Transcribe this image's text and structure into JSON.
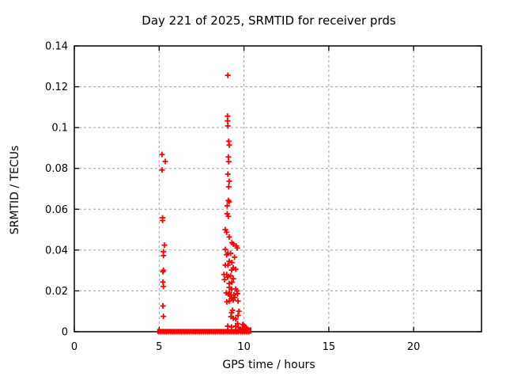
{
  "colors": {
    "background": "#ffffff",
    "axis": "#000000",
    "grid": "#a0a0a0",
    "marker": "#ff0000",
    "text": "#000000"
  },
  "chart_data": {
    "type": "scatter",
    "title": "Day 221 of 2025, SRMTID for receiver prds",
    "xlabel": "GPS time / hours",
    "ylabel": "SRMTID / TECUs",
    "xlim": [
      0,
      24
    ],
    "ylim": [
      0,
      0.14
    ],
    "grid": true,
    "legend": "none",
    "marker": {
      "shape": "plus",
      "color": "#ff0000",
      "size": 7
    },
    "xticks": [
      {
        "v": 0,
        "label": "0"
      },
      {
        "v": 5,
        "label": "5"
      },
      {
        "v": 10,
        "label": "10"
      },
      {
        "v": 15,
        "label": "15"
      },
      {
        "v": 20,
        "label": "20"
      }
    ],
    "yticks": [
      {
        "v": 0,
        "label": "0"
      },
      {
        "v": 0.02,
        "label": "0.02"
      },
      {
        "v": 0.04,
        "label": "0.04"
      },
      {
        "v": 0.06,
        "label": "0.06"
      },
      {
        "v": 0.08,
        "label": "0.08"
      },
      {
        "v": 0.1,
        "label": "0.1"
      },
      {
        "v": 0.12,
        "label": "0.12"
      },
      {
        "v": 0.14,
        "label": "0.14"
      }
    ],
    "baseline_segments": [
      {
        "x_start": 4.97,
        "x_end": 9.74,
        "y": 0,
        "thickness_px": 6
      },
      {
        "x_start": 9.8,
        "x_end": 10.35,
        "y": 0,
        "thickness_px": 8
      }
    ],
    "series": [
      {
        "name": "SRMTID",
        "points": [
          [
            5.17,
            0.0868
          ],
          [
            5.36,
            0.0834
          ],
          [
            5.17,
            0.0792
          ],
          [
            5.2,
            0.0558
          ],
          [
            5.2,
            0.0545
          ],
          [
            5.31,
            0.0424
          ],
          [
            5.25,
            0.0392
          ],
          [
            5.25,
            0.0373
          ],
          [
            5.25,
            0.0301
          ],
          [
            5.22,
            0.0294
          ],
          [
            5.22,
            0.0243
          ],
          [
            5.25,
            0.0222
          ],
          [
            5.22,
            0.0126
          ],
          [
            5.25,
            0.0075
          ],
          [
            9.05,
            0.1256
          ],
          [
            9.03,
            0.1056
          ],
          [
            9.03,
            0.1033
          ],
          [
            9.05,
            0.1008
          ],
          [
            9.1,
            0.0933
          ],
          [
            9.13,
            0.0914
          ],
          [
            9.08,
            0.0856
          ],
          [
            9.1,
            0.0833
          ],
          [
            9.05,
            0.0772
          ],
          [
            9.13,
            0.0737
          ],
          [
            9.1,
            0.071
          ],
          [
            9.08,
            0.0643
          ],
          [
            9.13,
            0.0636
          ],
          [
            9.01,
            0.0617
          ],
          [
            9.01,
            0.0578
          ],
          [
            9.08,
            0.0565
          ],
          [
            8.9,
            0.05
          ],
          [
            8.98,
            0.0487
          ],
          [
            9.13,
            0.0464
          ],
          [
            9.29,
            0.0436
          ],
          [
            9.37,
            0.0429
          ],
          [
            9.6,
            0.041
          ],
          [
            8.9,
            0.0403
          ],
          [
            9.05,
            0.0384
          ],
          [
            9.21,
            0.0384
          ],
          [
            8.98,
            0.0377
          ],
          [
            9.44,
            0.0365
          ],
          [
            9.13,
            0.0345
          ],
          [
            9.29,
            0.0339
          ],
          [
            8.9,
            0.0326
          ],
          [
            9.05,
            0.0326
          ],
          [
            9.37,
            0.0313
          ],
          [
            9.27,
            0.0302
          ],
          [
            9.51,
            0.0306
          ],
          [
            9.55,
            0.042
          ],
          [
            8.82,
            0.028
          ],
          [
            8.98,
            0.028
          ],
          [
            9.21,
            0.0274
          ],
          [
            9.04,
            0.0268
          ],
          [
            9.37,
            0.026
          ],
          [
            8.85,
            0.0255
          ],
          [
            9.29,
            0.0242
          ],
          [
            9.13,
            0.0236
          ],
          [
            9.13,
            0.0217
          ],
          [
            9.27,
            0.0209
          ],
          [
            9.51,
            0.0209
          ],
          [
            9.58,
            0.02
          ],
          [
            8.95,
            0.019
          ],
          [
            9.15,
            0.019
          ],
          [
            9.62,
            0.0186
          ],
          [
            9.09,
            0.0184
          ],
          [
            9.18,
            0.0177
          ],
          [
            9.41,
            0.0181
          ],
          [
            9.46,
            0.0168
          ],
          [
            9.27,
            0.0163
          ],
          [
            9.37,
            0.0155
          ],
          [
            9.13,
            0.015
          ],
          [
            8.99,
            0.0146
          ],
          [
            9.65,
            0.015
          ],
          [
            9.32,
            0.0105
          ],
          [
            9.27,
            0.0093
          ],
          [
            9.7,
            0.01
          ],
          [
            9.23,
            0.0074
          ],
          [
            9.37,
            0.0066
          ],
          [
            9.51,
            0.0062
          ],
          [
            9.65,
            0.008
          ],
          [
            9.04,
            0.0027
          ],
          [
            9.27,
            0.0023
          ],
          [
            9.51,
            0.0027
          ],
          [
            9.62,
            0.004
          ],
          [
            9.67,
            0.0022
          ],
          [
            9.93,
            0.0035
          ],
          [
            10.02,
            0.0028
          ],
          [
            10.1,
            0.0022
          ]
        ]
      }
    ]
  }
}
